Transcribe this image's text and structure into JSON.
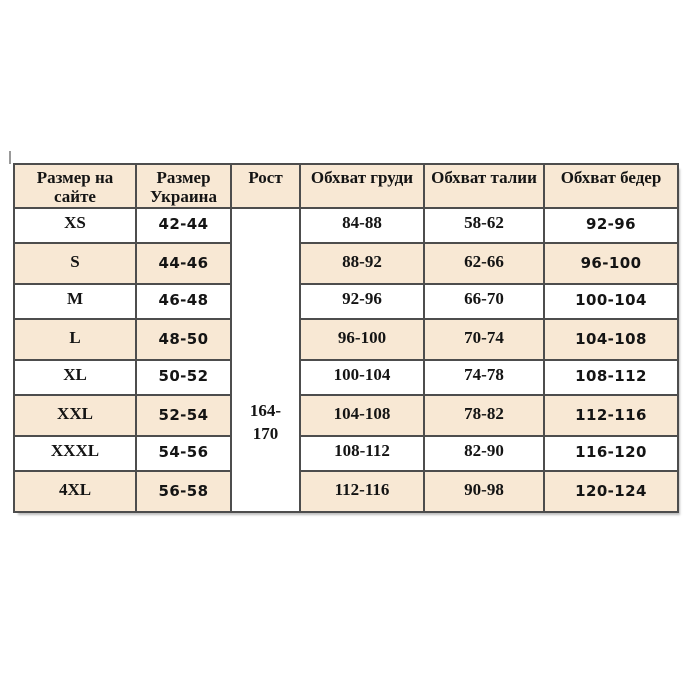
{
  "colors": {
    "page_bg": "#ffffff",
    "header_bg": "#f8e8d4",
    "stripe_bg": "#f8e8d4",
    "row_bg": "#ffffff",
    "border": "#4d4d4d",
    "text": "#141414"
  },
  "chart_data": {
    "type": "table",
    "title": "",
    "columns": [
      "Размер на сайте",
      "Размер Украина",
      "Рост",
      "Обхват груди",
      "Обхват талии",
      "Обхват бедер"
    ],
    "height_range": "164-\n170",
    "rows": [
      {
        "site": "XS",
        "ukraine": "42-44",
        "chest": "84-88",
        "waist": "58-62",
        "hips": "92-96"
      },
      {
        "site": "S",
        "ukraine": "44-46",
        "chest": "88-92",
        "waist": "62-66",
        "hips": "96-100"
      },
      {
        "site": "M",
        "ukraine": "46-48",
        "chest": "92-96",
        "waist": "66-70",
        "hips": "100-104"
      },
      {
        "site": "L",
        "ukraine": "48-50",
        "chest": "96-100",
        "waist": "70-74",
        "hips": "104-108"
      },
      {
        "site": "XL",
        "ukraine": "50-52",
        "chest": "100-104",
        "waist": "74-78",
        "hips": "108-112"
      },
      {
        "site": "XXL",
        "ukraine": "52-54",
        "chest": "104-108",
        "waist": "78-82",
        "hips": "112-116"
      },
      {
        "site": "XXXL",
        "ukraine": "54-56",
        "chest": "108-112",
        "waist": "82-90",
        "hips": "116-120"
      },
      {
        "site": "4XL",
        "ukraine": "56-58",
        "chest": "112-116",
        "waist": "90-98",
        "hips": "120-124"
      }
    ]
  }
}
